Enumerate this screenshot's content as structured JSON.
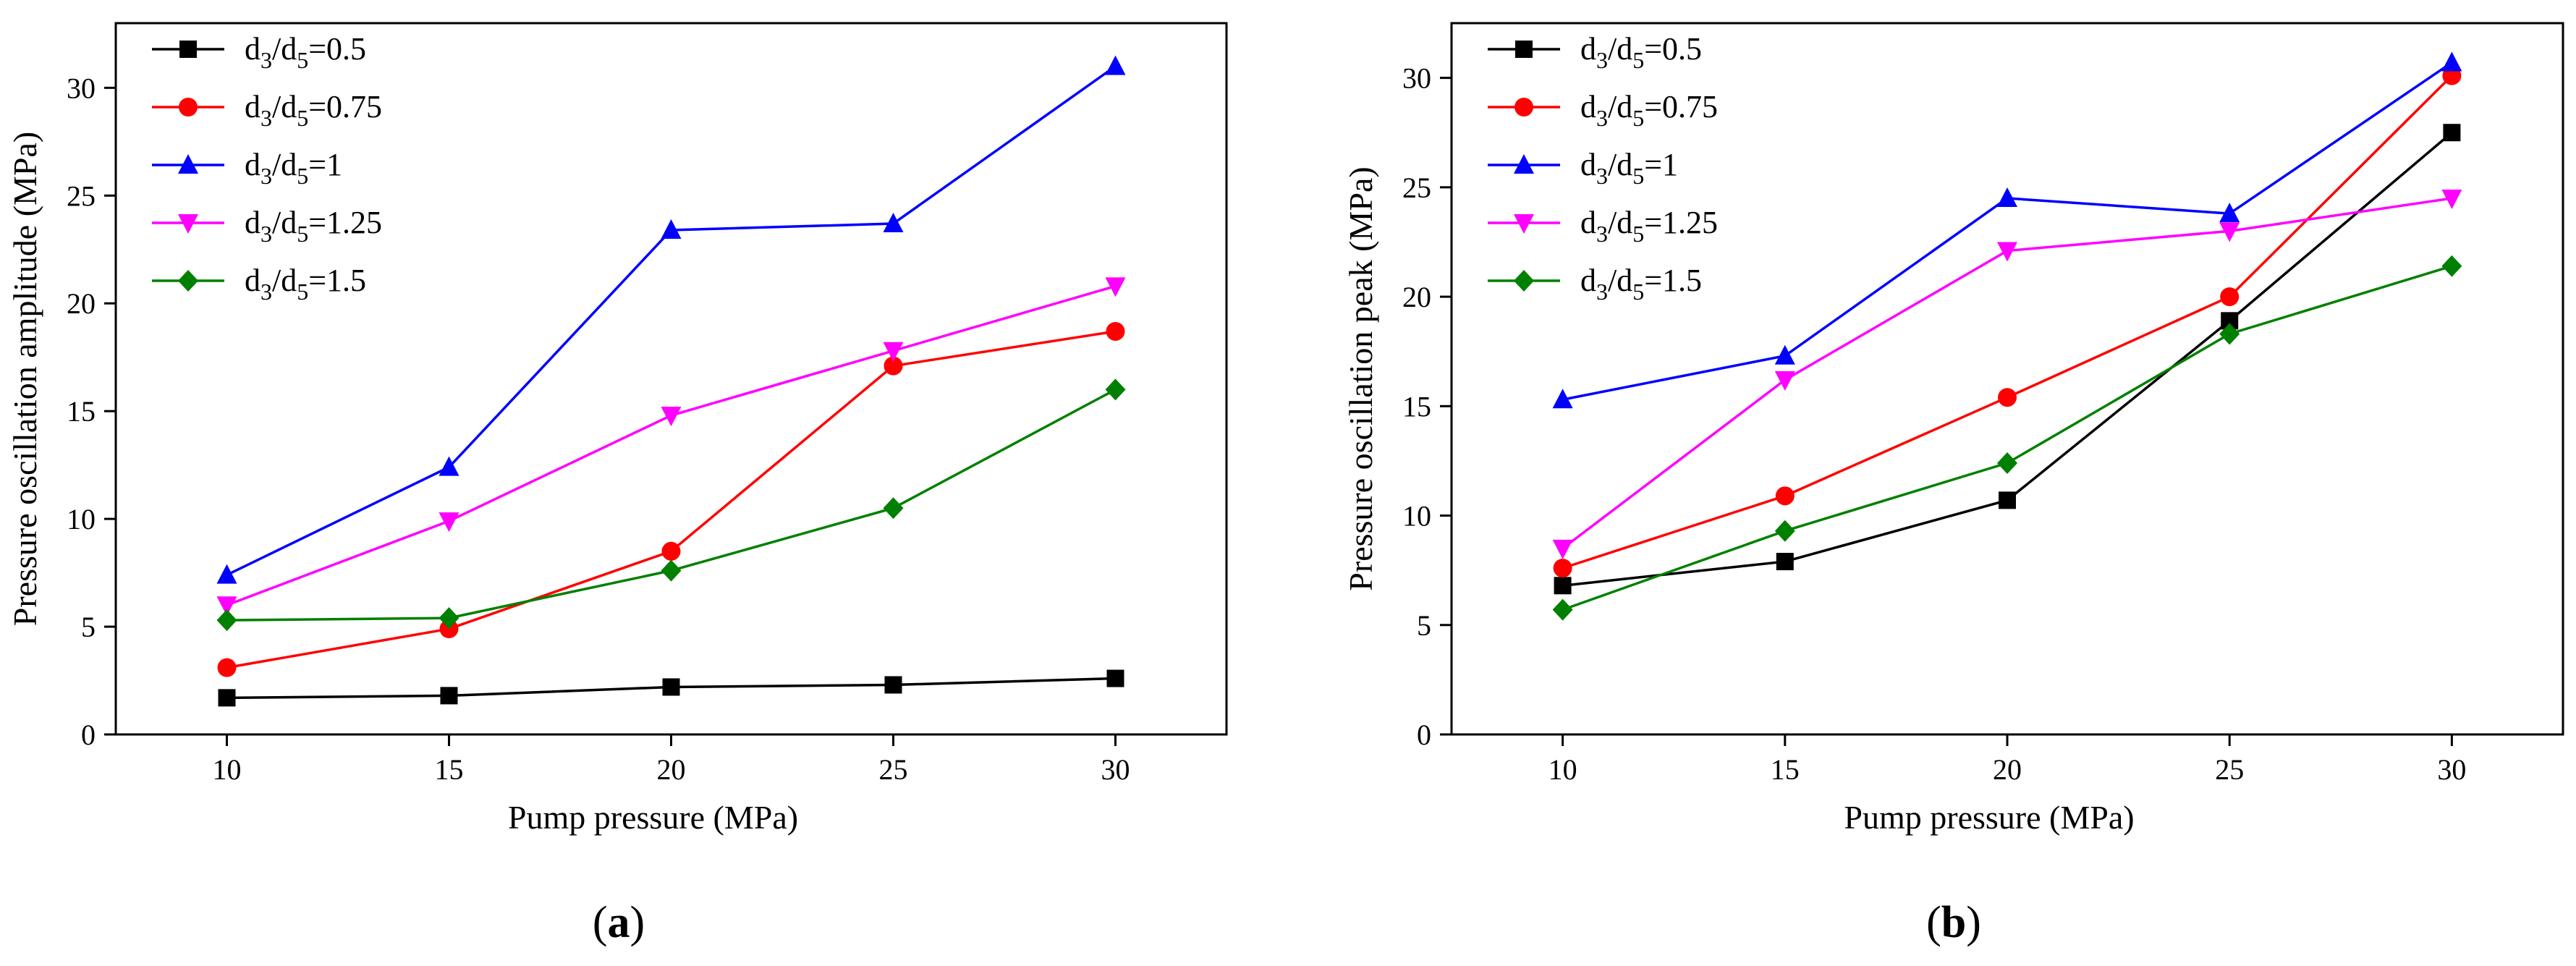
{
  "chart_data": [
    {
      "type": "line",
      "panel_label": "a",
      "title": "",
      "xlabel": "Pump pressure (MPa)",
      "ylabel": "Pressure  oscillation amplitude  (MPa)",
      "x": [
        10,
        15,
        20,
        25,
        30
      ],
      "xticks": [
        10,
        15,
        20,
        25,
        30
      ],
      "yticks": [
        0,
        5,
        10,
        15,
        20,
        25,
        30
      ],
      "xlim": [
        7.5,
        32.5
      ],
      "ylim": [
        0,
        33
      ],
      "legend_position": "top-left",
      "series": [
        {
          "name": "d3/d5=0.5",
          "ratio": "0.5",
          "color": "#000000",
          "marker": "square",
          "values": [
            1.7,
            1.8,
            2.2,
            2.3,
            2.6
          ]
        },
        {
          "name": "d3/d5=0.75",
          "ratio": "0.75",
          "color": "#ff0000",
          "marker": "circle",
          "values": [
            3.1,
            4.9,
            8.5,
            17.1,
            18.7
          ]
        },
        {
          "name": "d3/d5=1",
          "ratio": "1",
          "color": "#0000ff",
          "marker": "triangle-up",
          "values": [
            7.4,
            12.4,
            23.4,
            23.7,
            31.0
          ]
        },
        {
          "name": "d3/d5=1.25",
          "ratio": "1.25",
          "color": "#ff00ff",
          "marker": "triangle-down",
          "values": [
            6.0,
            9.9,
            14.8,
            17.8,
            20.8
          ]
        },
        {
          "name": "d3/d5=1.5",
          "ratio": "1.5",
          "color": "#008000",
          "marker": "diamond",
          "values": [
            5.3,
            5.4,
            7.6,
            10.5,
            16.0
          ]
        }
      ]
    },
    {
      "type": "line",
      "panel_label": "b",
      "title": "",
      "xlabel": "Pump pressure (MPa)",
      "ylabel": "Pressure  oscillation peak  (MPa)",
      "x": [
        10,
        15,
        20,
        25,
        30
      ],
      "xticks": [
        10,
        15,
        20,
        25,
        30
      ],
      "yticks": [
        0,
        5,
        10,
        15,
        20,
        25,
        30
      ],
      "xlim": [
        7.5,
        32.5
      ],
      "ylim": [
        0,
        32.5
      ],
      "legend_position": "top-left",
      "series": [
        {
          "name": "d3/d5=0.5",
          "ratio": "0.5",
          "color": "#000000",
          "marker": "square",
          "values": [
            6.8,
            7.9,
            10.7,
            18.9,
            27.5
          ]
        },
        {
          "name": "d3/d5=0.75",
          "ratio": "0.75",
          "color": "#ff0000",
          "marker": "circle",
          "values": [
            7.6,
            10.9,
            15.4,
            20.0,
            30.1
          ]
        },
        {
          "name": "d3/d5=1",
          "ratio": "1",
          "color": "#0000ff",
          "marker": "triangle-up",
          "values": [
            15.3,
            17.3,
            24.5,
            23.8,
            30.7
          ]
        },
        {
          "name": "d3/d5=1.25",
          "ratio": "1.25",
          "color": "#ff00ff",
          "marker": "triangle-down",
          "values": [
            8.5,
            16.2,
            22.1,
            23.0,
            24.5
          ]
        },
        {
          "name": "d3/d5=1.5",
          "ratio": "1.5",
          "color": "#008000",
          "marker": "diamond",
          "values": [
            5.7,
            9.3,
            12.4,
            18.3,
            21.4
          ]
        }
      ]
    }
  ],
  "legend_prefix": {
    "d1": "d",
    "s1": "3",
    "slash": "/d",
    "s2": "5",
    "eq": "="
  }
}
